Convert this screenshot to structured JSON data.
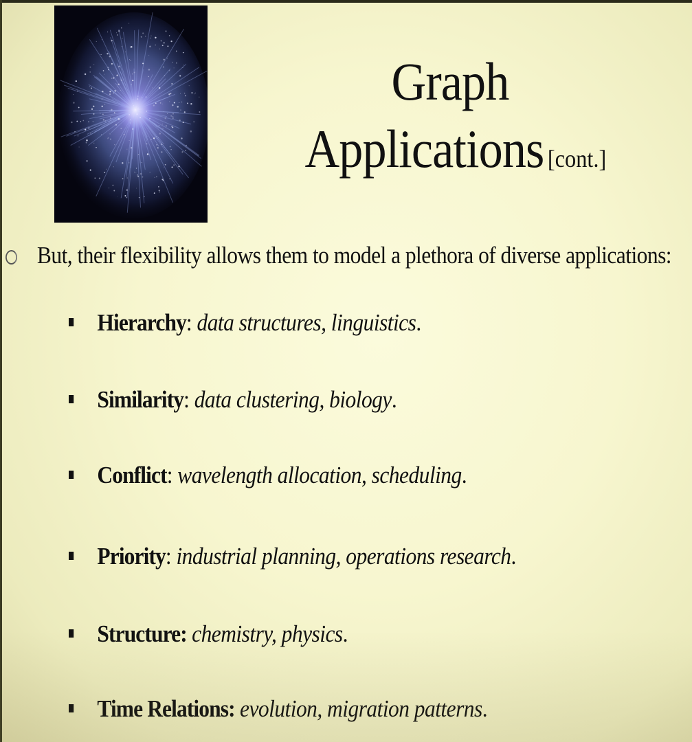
{
  "slide": {
    "image": {
      "icon": "network-graph-visualization"
    },
    "title": {
      "line1": "Graph",
      "line2": "Applications",
      "suffix": "[cont.]"
    },
    "intro": {
      "text": "But, their flexibility allows them to model a plethora of diverse applications:"
    },
    "items": [
      {
        "term": "Hierarchy",
        "sep": ": ",
        "desc": "data structures, linguistics",
        "end": "."
      },
      {
        "term": "Similarity",
        "sep": ": ",
        "desc": "data clustering, biology",
        "end": "."
      },
      {
        "term": "Conflict",
        "sep": ": ",
        "desc": "wavelength allocation, scheduling",
        "end": "."
      },
      {
        "term": "Priority",
        "sep": ": ",
        "desc": "industrial planning, operations research",
        "end": "."
      },
      {
        "term": "Structure:",
        "sep": " ",
        "desc": "chemistry, physics",
        "end": "."
      },
      {
        "term": "Time Relations:",
        "sep": " ",
        "desc": "evolution, migration patterns",
        "end": "."
      }
    ]
  }
}
